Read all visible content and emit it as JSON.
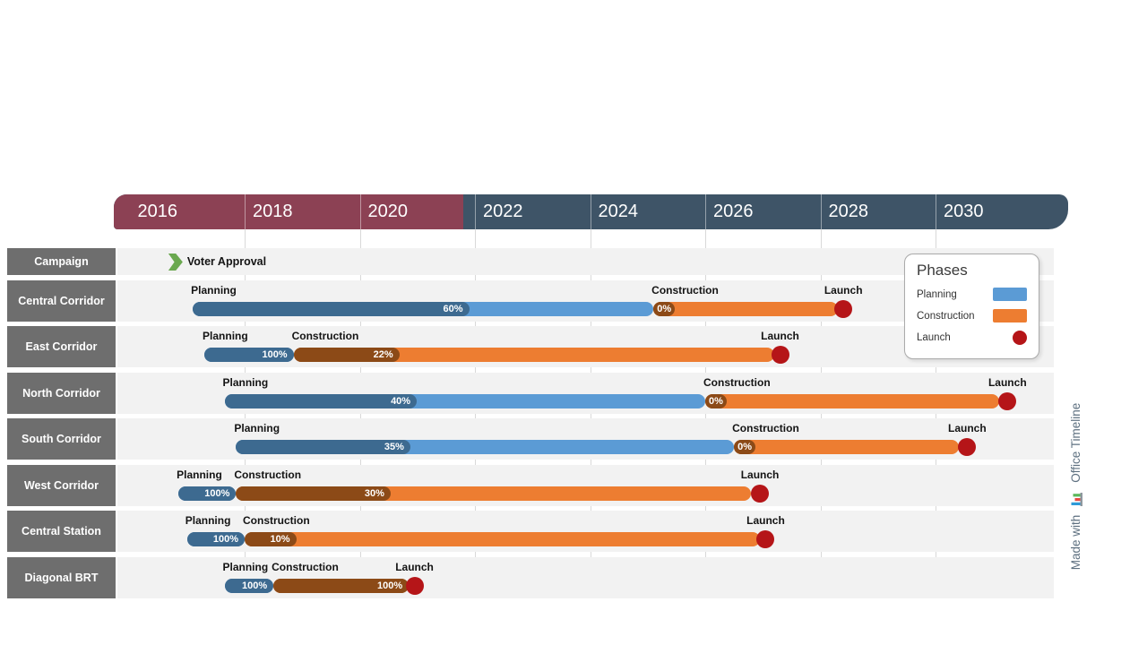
{
  "branding": {
    "prefix": "Made with",
    "brand": "Office Timeline"
  },
  "legend": {
    "title": "Phases",
    "items": [
      {
        "label": "Planning",
        "shape": "bar",
        "color": "#5b9bd5"
      },
      {
        "label": "Construction",
        "shape": "bar",
        "color": "#ed7d31"
      },
      {
        "label": "Launch",
        "shape": "circle",
        "color": "#b51518"
      }
    ]
  },
  "colors": {
    "header_elapsed": "#8c4154",
    "header_future": "#3e5467",
    "row_label_bg": "#6e6e6e",
    "row_band_bg": "#f2f2f2",
    "gridline": "#d9d9d9",
    "planning": "#5b9bd5",
    "planning_complete": "#3d6a90",
    "construction": "#ed7d31",
    "construction_complete": "#8c4a17",
    "launch": "#b51518",
    "milestone": "#6aa84f",
    "branding_text": "#5e7080"
  },
  "chart_data": {
    "type": "gantt-timeline",
    "axis": {
      "unit": "year",
      "ticks": [
        2016,
        2018,
        2020,
        2022,
        2024,
        2026,
        2028,
        2030
      ],
      "min": 2015.8,
      "max": 2032.3,
      "elapsed_until": 2021.8
    },
    "rows": [
      {
        "label": "Campaign",
        "milestones": [
          {
            "label": "Voter Approval",
            "year": 2016.8
          }
        ]
      },
      {
        "label": "Central Corridor",
        "phases": [
          {
            "name": "Planning",
            "start": 2017.1,
            "end": 2025.1,
            "percent_complete": 60
          },
          {
            "name": "Construction",
            "start": 2025.1,
            "end": 2028.3,
            "percent_complete": 0
          }
        ],
        "launch": {
          "label": "Launch",
          "year": 2028.4
        }
      },
      {
        "label": "East Corridor",
        "phases": [
          {
            "name": "Planning",
            "start": 2017.3,
            "end": 2018.85,
            "percent_complete": 100
          },
          {
            "name": "Construction",
            "start": 2018.85,
            "end": 2027.2,
            "percent_complete": 22
          }
        ],
        "launch": {
          "label": "Launch",
          "year": 2027.3
        }
      },
      {
        "label": "North Corridor",
        "phases": [
          {
            "name": "Planning",
            "start": 2017.65,
            "end": 2026.0,
            "percent_complete": 40
          },
          {
            "name": "Construction",
            "start": 2026.0,
            "end": 2031.1,
            "percent_complete": 0
          }
        ],
        "launch": {
          "label": "Launch",
          "year": 2031.25
        }
      },
      {
        "label": "South Corridor",
        "phases": [
          {
            "name": "Planning",
            "start": 2017.85,
            "end": 2026.5,
            "percent_complete": 35
          },
          {
            "name": "Construction",
            "start": 2026.5,
            "end": 2030.4,
            "percent_complete": 0
          }
        ],
        "launch": {
          "label": "Launch",
          "year": 2030.55
        }
      },
      {
        "label": "West Corridor",
        "phases": [
          {
            "name": "Planning",
            "start": 2016.85,
            "end": 2017.85,
            "percent_complete": 100
          },
          {
            "name": "Construction",
            "start": 2017.85,
            "end": 2026.8,
            "percent_complete": 30
          }
        ],
        "launch": {
          "label": "Launch",
          "year": 2026.95
        }
      },
      {
        "label": "Central Station",
        "phases": [
          {
            "name": "Planning",
            "start": 2017.0,
            "end": 2018.0,
            "percent_complete": 100
          },
          {
            "name": "Construction",
            "start": 2018.0,
            "end": 2026.95,
            "percent_complete": 10
          }
        ],
        "launch": {
          "label": "Launch",
          "year": 2027.05
        }
      },
      {
        "label": "Diagonal BRT",
        "phases": [
          {
            "name": "Planning",
            "start": 2017.65,
            "end": 2018.5,
            "percent_complete": 100
          },
          {
            "name": "Construction",
            "start": 2018.5,
            "end": 2020.85,
            "percent_complete": 100
          }
        ],
        "launch": {
          "label": "Launch",
          "year": 2020.95
        }
      }
    ]
  }
}
